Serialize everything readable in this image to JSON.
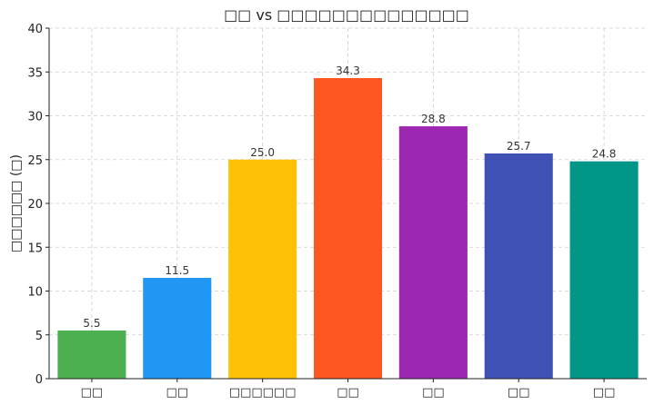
{
  "chart_data": {
    "type": "bar",
    "title": "□□ vs □□□□□□□□□□□□□□",
    "xlabel": "",
    "ylabel": "□□□□□□ (□)",
    "categories": [
      "□□",
      "□□",
      "□□□□□□",
      "□□",
      "□□",
      "□□",
      "□□"
    ],
    "values": [
      5.5,
      11.5,
      25.0,
      34.3,
      28.8,
      25.7,
      24.8
    ],
    "value_labels": [
      "5.5",
      "11.5",
      "25.0",
      "34.3",
      "28.8",
      "25.7",
      "24.8"
    ],
    "colors": [
      "#4CAF50",
      "#2196F3",
      "#FFC107",
      "#FF5722",
      "#9C27B0",
      "#3F51B5",
      "#009688"
    ],
    "ylim": [
      0,
      40
    ],
    "yticks": [
      0,
      5,
      10,
      15,
      20,
      25,
      30,
      35,
      40
    ],
    "ytick_labels": [
      "0",
      "5",
      "10",
      "15",
      "20",
      "25",
      "30",
      "35",
      "40"
    ],
    "grid": true
  }
}
